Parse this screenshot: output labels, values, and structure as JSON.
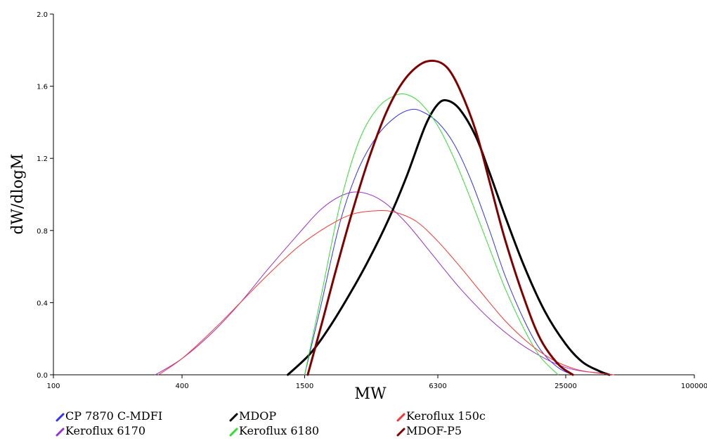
{
  "chart_data": {
    "type": "line",
    "xlabel": "MW",
    "ylabel": "dW/dlogM",
    "x_scale": "log",
    "xlim": [
      100,
      100000
    ],
    "ylim": [
      0,
      2.0
    ],
    "x_ticks": [
      {
        "value": 100,
        "label": "100"
      },
      {
        "value": 400,
        "label": "400"
      },
      {
        "value": 1500,
        "label": "1500"
      },
      {
        "value": 6300,
        "label": "6300"
      },
      {
        "value": 25000,
        "label": "25000"
      },
      {
        "value": 100000,
        "label": "100000"
      }
    ],
    "y_ticks": [
      {
        "value": 0.0,
        "label": "0.0"
      },
      {
        "value": 0.4,
        "label": "0.4"
      },
      {
        "value": 0.8,
        "label": "0.8"
      },
      {
        "value": 1.2,
        "label": "1.2"
      },
      {
        "value": 1.6,
        "label": "1.6"
      },
      {
        "value": 2.0,
        "label": "2.0"
      }
    ],
    "grid": false,
    "legend_position": "bottom-left",
    "series": [
      {
        "name": "CP 7870 C-MDFI",
        "color": "#3333ff",
        "width": 1,
        "x": [
          1500,
          1800,
          2200,
          2700,
          3300,
          4000,
          4700,
          5300,
          6300,
          7500,
          9000,
          11000,
          13000,
          16000,
          19000,
          23000,
          27000
        ],
        "y": [
          0.0,
          0.4,
          0.85,
          1.15,
          1.33,
          1.43,
          1.47,
          1.46,
          1.4,
          1.28,
          1.08,
          0.8,
          0.55,
          0.3,
          0.14,
          0.04,
          0.0
        ]
      },
      {
        "name": "Keroflux 6170",
        "color": "#9933cc",
        "width": 1,
        "x": [
          300,
          400,
          550,
          750,
          1000,
          1400,
          1800,
          2300,
          2800,
          3500,
          4500,
          6000,
          8000,
          11000,
          15000,
          20000,
          25000,
          30000,
          36000,
          42000
        ],
        "y": [
          0.0,
          0.09,
          0.23,
          0.4,
          0.58,
          0.78,
          0.92,
          1.0,
          1.01,
          0.96,
          0.84,
          0.66,
          0.48,
          0.31,
          0.18,
          0.09,
          0.04,
          0.02,
          0.01,
          0.0
        ]
      },
      {
        "name": "MDOP",
        "color": "#000000",
        "width": 3,
        "x": [
          1250,
          1600,
          2000,
          2500,
          3000,
          3700,
          4500,
          5500,
          6300,
          7000,
          8000,
          9500,
          11000,
          13000,
          16000,
          20000,
          25000,
          30000,
          36000,
          40000
        ],
        "y": [
          0.0,
          0.12,
          0.28,
          0.47,
          0.64,
          0.86,
          1.1,
          1.38,
          1.5,
          1.52,
          1.47,
          1.32,
          1.12,
          0.88,
          0.6,
          0.35,
          0.17,
          0.07,
          0.02,
          0.0
        ]
      },
      {
        "name": "Keroflux 6180",
        "color": "#33dd33",
        "width": 1,
        "x": [
          1500,
          1800,
          2200,
          2700,
          3300,
          4000,
          4600,
          5300,
          6300,
          7500,
          9000,
          11000,
          13000,
          16000,
          19000,
          23000
        ],
        "y": [
          0.0,
          0.45,
          0.95,
          1.3,
          1.48,
          1.55,
          1.55,
          1.5,
          1.38,
          1.2,
          0.97,
          0.7,
          0.48,
          0.25,
          0.1,
          0.0
        ]
      },
      {
        "name": "Keroflux 150c",
        "color": "#ff3333",
        "width": 1,
        "x": [
          310,
          400,
          550,
          750,
          1000,
          1400,
          1900,
          2500,
          3300,
          4000,
          5000,
          6300,
          8000,
          10000,
          13000,
          17000,
          22000,
          28000,
          35000,
          42000
        ],
        "y": [
          0.0,
          0.09,
          0.24,
          0.4,
          0.55,
          0.71,
          0.82,
          0.89,
          0.91,
          0.9,
          0.85,
          0.74,
          0.6,
          0.46,
          0.3,
          0.17,
          0.08,
          0.03,
          0.01,
          0.0
        ]
      },
      {
        "name": "MDOF-P5",
        "color": "#800000",
        "width": 3,
        "x": [
          1550,
          1800,
          2100,
          2500,
          3000,
          3600,
          4300,
          5200,
          6100,
          7000,
          8000,
          9500,
          11000,
          13000,
          16000,
          19000,
          23000,
          27000
        ],
        "y": [
          0.0,
          0.28,
          0.58,
          0.9,
          1.2,
          1.45,
          1.62,
          1.72,
          1.74,
          1.7,
          1.58,
          1.35,
          1.07,
          0.75,
          0.42,
          0.2,
          0.06,
          0.0
        ]
      }
    ]
  }
}
